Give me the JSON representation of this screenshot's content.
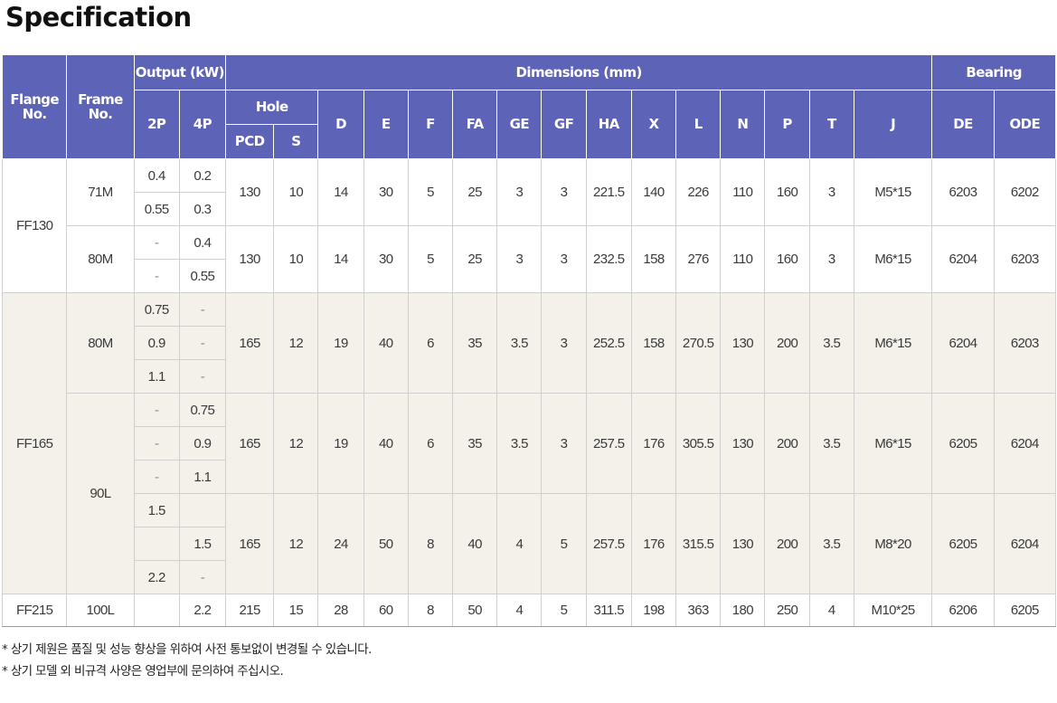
{
  "title": "Specification",
  "header": {
    "flange": "Flange No.",
    "frame": "Frame No.",
    "output": "Output (kW)",
    "dimensions": "Dimensions (mm)",
    "bearing": "Bearing",
    "hole": "Hole",
    "dims": [
      "D",
      "E",
      "F",
      "FA",
      "GE",
      "GF",
      "HA",
      "X",
      "L",
      "N",
      "P",
      "T",
      "J"
    ],
    "sub": {
      "p2": "2P",
      "p4": "4P",
      "pcd": "PCD",
      "s": "S",
      "de": "DE",
      "ode": "ODE"
    }
  },
  "table": {
    "groups": [
      {
        "flange": "FF130",
        "frames": [
          {
            "frame": "71M",
            "units": [
              {
                "outputs": [
                  [
                    "0.4",
                    "0.2"
                  ],
                  [
                    "0.55",
                    "0.3"
                  ]
                ],
                "pcd": "130",
                "s": "10",
                "dims": [
                  "14",
                  "30",
                  "5",
                  "25",
                  "3",
                  "3",
                  "221.5",
                  "140",
                  "226",
                  "110",
                  "160",
                  "3",
                  "M5*15"
                ],
                "de": "6203",
                "ode": "6202"
              }
            ]
          },
          {
            "frame": "80M",
            "units": [
              {
                "outputs": [
                  [
                    "-",
                    "0.4"
                  ],
                  [
                    "-",
                    "0.55"
                  ]
                ],
                "pcd": "130",
                "s": "10",
                "dims": [
                  "14",
                  "30",
                  "5",
                  "25",
                  "3",
                  "3",
                  "232.5",
                  "158",
                  "276",
                  "110",
                  "160",
                  "3",
                  "M6*15"
                ],
                "de": "6204",
                "ode": "6203"
              }
            ]
          }
        ]
      },
      {
        "flange": "FF165",
        "frames": [
          {
            "frame": "80M",
            "units": [
              {
                "outputs": [
                  [
                    "0.75",
                    "-"
                  ],
                  [
                    "0.9",
                    "-"
                  ],
                  [
                    "1.1",
                    "-"
                  ]
                ],
                "pcd": "165",
                "s": "12",
                "dims": [
                  "19",
                  "40",
                  "6",
                  "35",
                  "3.5",
                  "3",
                  "252.5",
                  "158",
                  "270.5",
                  "130",
                  "200",
                  "3.5",
                  "M6*15"
                ],
                "de": "6204",
                "ode": "6203"
              }
            ]
          },
          {
            "frame": "90L",
            "units": [
              {
                "outputs": [
                  [
                    "-",
                    "0.75"
                  ],
                  [
                    "-",
                    "0.9"
                  ],
                  [
                    "-",
                    "1.1"
                  ]
                ],
                "pcd": "165",
                "s": "12",
                "dims": [
                  "19",
                  "40",
                  "6",
                  "35",
                  "3.5",
                  "3",
                  "257.5",
                  "176",
                  "305.5",
                  "130",
                  "200",
                  "3.5",
                  "M6*15"
                ],
                "de": "6205",
                "ode": "6204"
              },
              {
                "outputs": [
                  [
                    "1.5",
                    ""
                  ],
                  [
                    "",
                    "1.5"
                  ],
                  [
                    "2.2",
                    "-"
                  ]
                ],
                "pcd": "165",
                "s": "12",
                "dims": [
                  "24",
                  "50",
                  "8",
                  "40",
                  "4",
                  "5",
                  "257.5",
                  "176",
                  "315.5",
                  "130",
                  "200",
                  "3.5",
                  "M8*20"
                ],
                "de": "6205",
                "ode": "6204"
              }
            ]
          }
        ]
      },
      {
        "flange": "FF215",
        "frames": [
          {
            "frame": "100L",
            "units": [
              {
                "outputs": [
                  [
                    "",
                    "2.2"
                  ]
                ],
                "pcd": "215",
                "s": "15",
                "dims": [
                  "28",
                  "60",
                  "8",
                  "50",
                  "4",
                  "5",
                  "311.5",
                  "198",
                  "363",
                  "180",
                  "250",
                  "4",
                  "M10*25"
                ],
                "de": "6206",
                "ode": "6205"
              }
            ]
          }
        ]
      }
    ]
  },
  "notes": [
    "* 상기 제원은 품질 및 성능 향상을 위하여 사전 통보없이 변경될 수 있습니다.",
    "* 상기 모델 외 비규격 사양은 영업부에 문의하여 주십시오."
  ]
}
